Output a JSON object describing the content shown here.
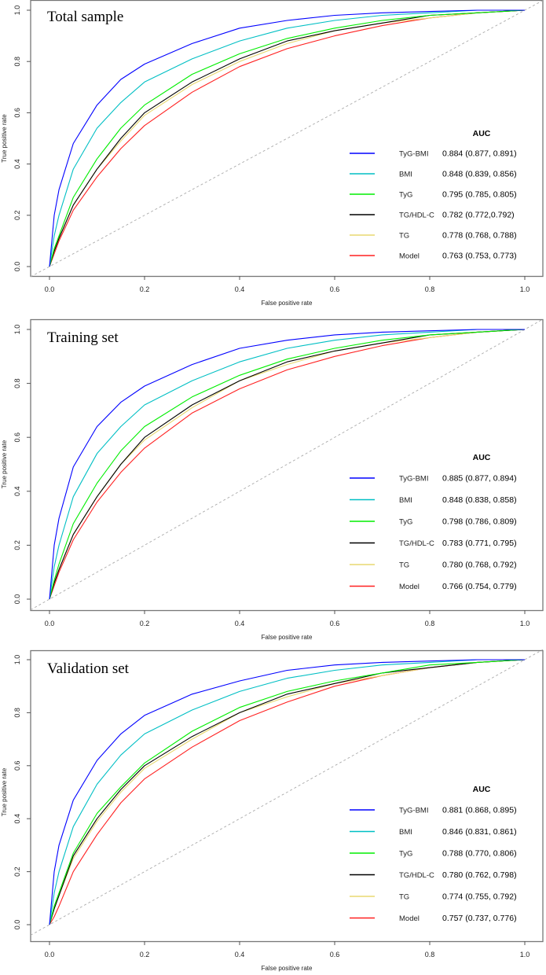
{
  "chart_data": [
    {
      "type": "line",
      "title": "Total sample",
      "xlabel": "False positive rate",
      "ylabel": "True positive rate",
      "xlim": [
        0,
        1
      ],
      "ylim": [
        0,
        1
      ],
      "xticks": [
        "0.0",
        "0.2",
        "0.4",
        "0.6",
        "0.8",
        "1.0"
      ],
      "yticks": [
        "0.0",
        "0.2",
        "0.4",
        "0.6",
        "0.8",
        "1.0"
      ],
      "legend_header": "AUC",
      "legend_position": "bottom-right",
      "x": [
        0,
        0.01,
        0.02,
        0.05,
        0.1,
        0.15,
        0.2,
        0.3,
        0.4,
        0.5,
        0.6,
        0.7,
        0.8,
        0.9,
        1
      ],
      "series": [
        {
          "name": "TyG-BMI",
          "auc": "0.884 (0.877, 0.891)",
          "color": "#0000ff",
          "values": [
            0,
            0.2,
            0.3,
            0.48,
            0.63,
            0.73,
            0.79,
            0.87,
            0.93,
            0.96,
            0.98,
            0.99,
            0.995,
            1,
            1
          ]
        },
        {
          "name": "BMI",
          "auc": "0.848 (0.839, 0.856)",
          "color": "#00bfc4",
          "values": [
            0,
            0.12,
            0.2,
            0.38,
            0.54,
            0.64,
            0.72,
            0.81,
            0.88,
            0.93,
            0.96,
            0.98,
            0.99,
            1,
            1
          ]
        },
        {
          "name": "TyG",
          "auc": "0.795 (0.785, 0.805)",
          "color": "#00ee00",
          "values": [
            0,
            0.07,
            0.12,
            0.27,
            0.42,
            0.54,
            0.63,
            0.75,
            0.83,
            0.89,
            0.93,
            0.96,
            0.98,
            0.99,
            1
          ]
        },
        {
          "name": "TG/HDL-C",
          "auc": "0.782 (0.772,0.792)",
          "color": "#000000",
          "values": [
            0,
            0.06,
            0.11,
            0.24,
            0.38,
            0.5,
            0.6,
            0.72,
            0.81,
            0.88,
            0.92,
            0.95,
            0.98,
            0.99,
            1
          ]
        },
        {
          "name": "TG",
          "auc": "0.778 (0.768, 0.788)",
          "color": "#e8d870",
          "values": [
            0,
            0.06,
            0.11,
            0.24,
            0.38,
            0.49,
            0.59,
            0.71,
            0.8,
            0.87,
            0.92,
            0.95,
            0.97,
            0.99,
            1
          ]
        },
        {
          "name": "Model",
          "auc": "0.763 (0.753, 0.773)",
          "color": "#ff2020",
          "values": [
            0,
            0.05,
            0.1,
            0.22,
            0.35,
            0.46,
            0.55,
            0.68,
            0.78,
            0.85,
            0.9,
            0.94,
            0.97,
            0.99,
            1
          ]
        }
      ]
    },
    {
      "type": "line",
      "title": "Training set",
      "xlabel": "False positive rate",
      "ylabel": "True positive rate",
      "xlim": [
        0,
        1
      ],
      "ylim": [
        0,
        1
      ],
      "xticks": [
        "0.0",
        "0.2",
        "0.4",
        "0.6",
        "0.8",
        "1.0"
      ],
      "yticks": [
        "0.0",
        "0.2",
        "0.4",
        "0.6",
        "0.8",
        "1.0"
      ],
      "legend_header": "AUC",
      "legend_position": "bottom-right",
      "x": [
        0,
        0.01,
        0.02,
        0.05,
        0.1,
        0.15,
        0.2,
        0.3,
        0.4,
        0.5,
        0.6,
        0.7,
        0.8,
        0.9,
        1
      ],
      "series": [
        {
          "name": "TyG-BMI",
          "auc": "0.885 (0.877, 0.894)",
          "color": "#0000ff",
          "values": [
            0,
            0.2,
            0.3,
            0.49,
            0.64,
            0.73,
            0.79,
            0.87,
            0.93,
            0.96,
            0.98,
            0.99,
            0.995,
            1,
            1
          ]
        },
        {
          "name": "BMI",
          "auc": "0.848 (0.838, 0.858)",
          "color": "#00bfc4",
          "values": [
            0,
            0.12,
            0.2,
            0.38,
            0.54,
            0.64,
            0.72,
            0.81,
            0.88,
            0.93,
            0.96,
            0.98,
            0.99,
            1,
            1
          ]
        },
        {
          "name": "TyG",
          "auc": "0.798 (0.786, 0.809)",
          "color": "#00ee00",
          "values": [
            0,
            0.07,
            0.13,
            0.28,
            0.43,
            0.55,
            0.64,
            0.75,
            0.83,
            0.89,
            0.93,
            0.96,
            0.98,
            0.99,
            1
          ]
        },
        {
          "name": "TG/HDL-C",
          "auc": "0.783 (0.771, 0.795)",
          "color": "#000000",
          "values": [
            0,
            0.06,
            0.11,
            0.24,
            0.38,
            0.5,
            0.6,
            0.72,
            0.81,
            0.88,
            0.92,
            0.95,
            0.98,
            0.99,
            1
          ]
        },
        {
          "name": "TG",
          "auc": "0.780 (0.768, 0.792)",
          "color": "#e8d870",
          "values": [
            0,
            0.06,
            0.11,
            0.24,
            0.38,
            0.5,
            0.59,
            0.71,
            0.81,
            0.87,
            0.92,
            0.95,
            0.97,
            0.99,
            1
          ]
        },
        {
          "name": "Model",
          "auc": "0.766 (0.754, 0.779)",
          "color": "#ff2020",
          "values": [
            0,
            0.05,
            0.1,
            0.22,
            0.36,
            0.47,
            0.56,
            0.69,
            0.78,
            0.85,
            0.9,
            0.94,
            0.97,
            0.99,
            1
          ]
        }
      ]
    },
    {
      "type": "line",
      "title": "Validation set",
      "xlabel": "False positive rate",
      "ylabel": "True positive rate",
      "xlim": [
        0,
        1
      ],
      "ylim": [
        0,
        1
      ],
      "xticks": [
        "0.0",
        "0.2",
        "0.4",
        "0.6",
        "0.8",
        "1.0"
      ],
      "yticks": [
        "0.0",
        "0.2",
        "0.4",
        "0.6",
        "0.8",
        "1.0"
      ],
      "legend_header": "AUC",
      "legend_position": "bottom-right",
      "x": [
        0,
        0.01,
        0.02,
        0.05,
        0.1,
        0.15,
        0.2,
        0.3,
        0.4,
        0.5,
        0.6,
        0.7,
        0.8,
        0.9,
        1
      ],
      "series": [
        {
          "name": "TyG-BMI",
          "auc": "0.881 (0.868, 0.895)",
          "color": "#0000ff",
          "values": [
            0,
            0.2,
            0.3,
            0.47,
            0.62,
            0.72,
            0.79,
            0.87,
            0.92,
            0.96,
            0.98,
            0.99,
            0.995,
            1,
            1
          ]
        },
        {
          "name": "BMI",
          "auc": "0.846 (0.831, 0.861)",
          "color": "#00bfc4",
          "values": [
            0,
            0.12,
            0.2,
            0.37,
            0.53,
            0.64,
            0.72,
            0.81,
            0.88,
            0.93,
            0.96,
            0.98,
            0.99,
            1,
            1
          ]
        },
        {
          "name": "TyG",
          "auc": "0.788 (0.770, 0.806)",
          "color": "#00ee00",
          "values": [
            0,
            0.07,
            0.12,
            0.27,
            0.42,
            0.52,
            0.61,
            0.73,
            0.82,
            0.88,
            0.92,
            0.95,
            0.98,
            0.99,
            1
          ]
        },
        {
          "name": "TG/HDL-C",
          "auc": "0.780 (0.762, 0.798)",
          "color": "#000000",
          "values": [
            0,
            0.06,
            0.11,
            0.26,
            0.4,
            0.51,
            0.6,
            0.71,
            0.8,
            0.87,
            0.91,
            0.95,
            0.97,
            0.99,
            1
          ]
        },
        {
          "name": "TG",
          "auc": "0.774 (0.755, 0.792)",
          "color": "#e8d870",
          "values": [
            0,
            0.06,
            0.11,
            0.25,
            0.39,
            0.5,
            0.59,
            0.7,
            0.8,
            0.86,
            0.91,
            0.94,
            0.97,
            0.99,
            1
          ]
        },
        {
          "name": "Model",
          "auc": "0.757 (0.737, 0.776)",
          "color": "#ff2020",
          "values": [
            0,
            0.03,
            0.07,
            0.2,
            0.34,
            0.46,
            0.55,
            0.67,
            0.77,
            0.84,
            0.9,
            0.94,
            0.97,
            0.99,
            1
          ]
        }
      ]
    }
  ]
}
